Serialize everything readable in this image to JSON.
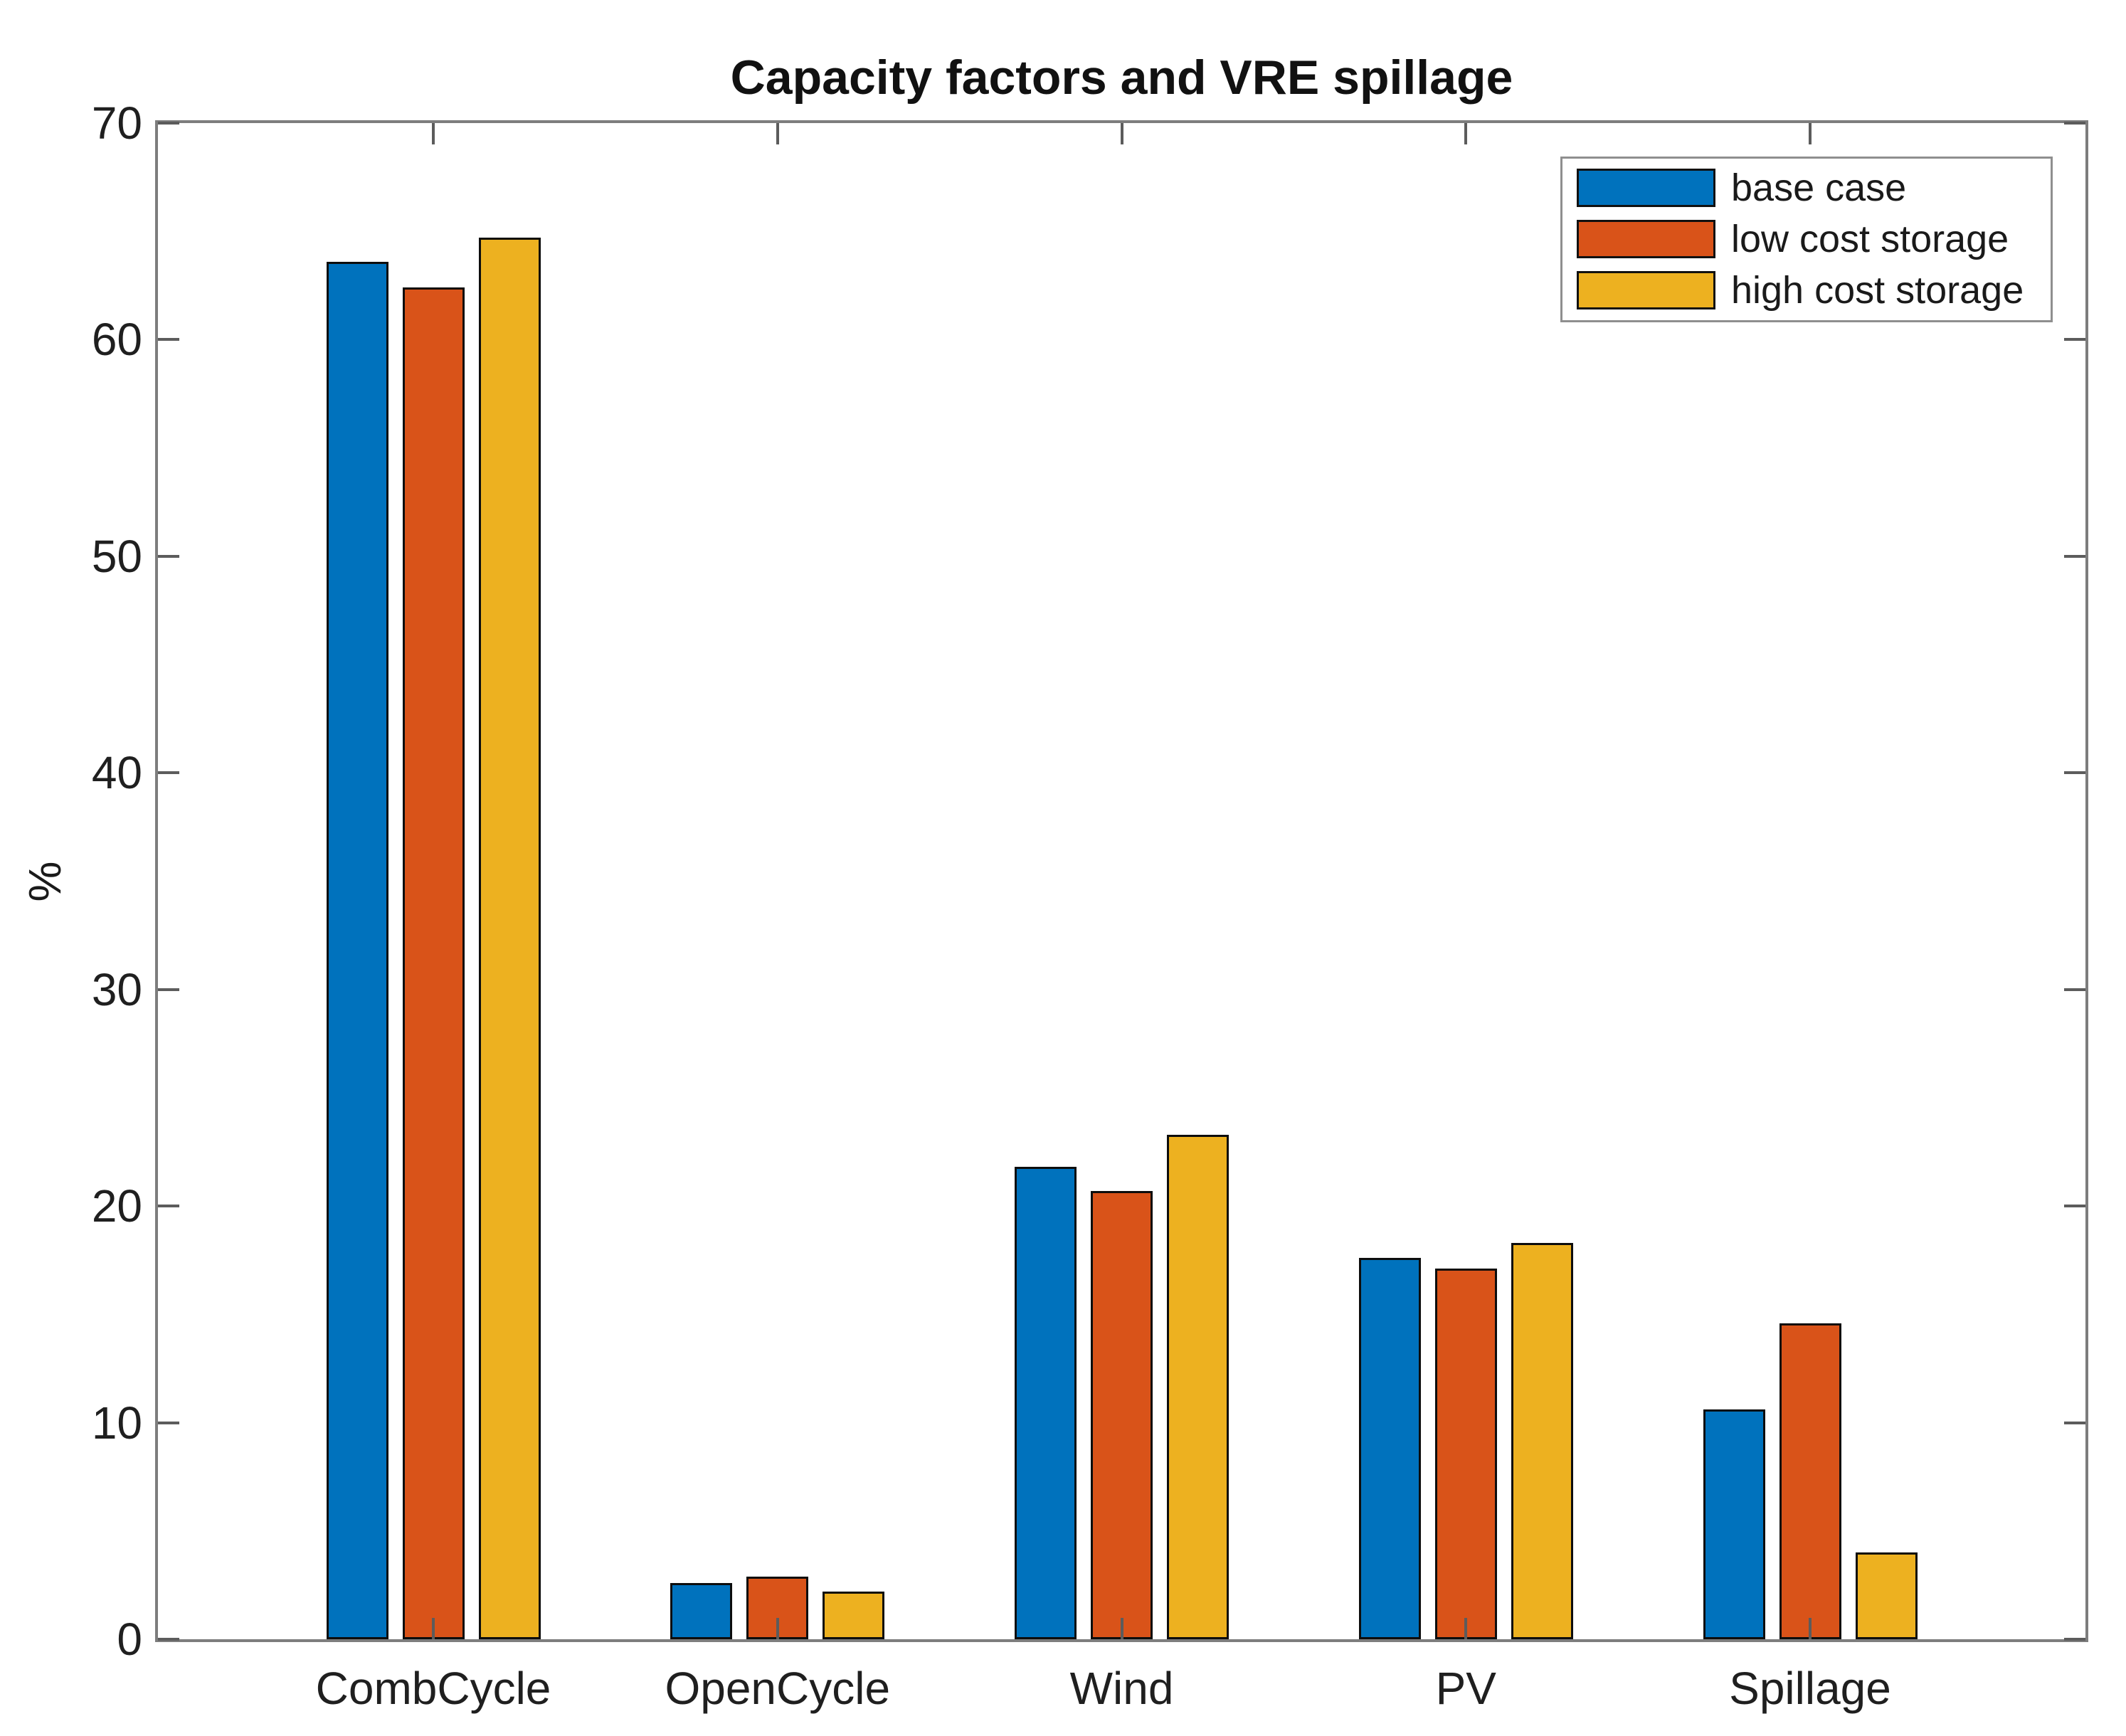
{
  "title": "Capacity factors and VRE spillage",
  "chart_data": {
    "type": "bar",
    "title": "Capacity factors and VRE spillage",
    "xlabel": "",
    "ylabel": "%",
    "ylim": [
      0,
      70
    ],
    "yticks": [
      0,
      10,
      20,
      30,
      40,
      50,
      60,
      70
    ],
    "categories": [
      "CombCycle",
      "OpenCycle",
      "Wind",
      "PV",
      "Spillage"
    ],
    "series": [
      {
        "name": "base case",
        "color": "#0072BD",
        "values": [
          63.6,
          2.6,
          21.8,
          17.6,
          10.6
        ]
      },
      {
        "name": "low cost storage",
        "color": "#D95319",
        "values": [
          62.4,
          2.9,
          20.7,
          17.1,
          14.6
        ]
      },
      {
        "name": "high cost storage",
        "color": "#EDB120",
        "values": [
          64.7,
          2.2,
          23.3,
          18.3,
          4.0
        ]
      }
    ],
    "legend_position": "top-right",
    "grid": false,
    "bar_edge_color": "#000000",
    "axis_color": "#7d7d7d",
    "text_color": "#1a1a1a"
  }
}
